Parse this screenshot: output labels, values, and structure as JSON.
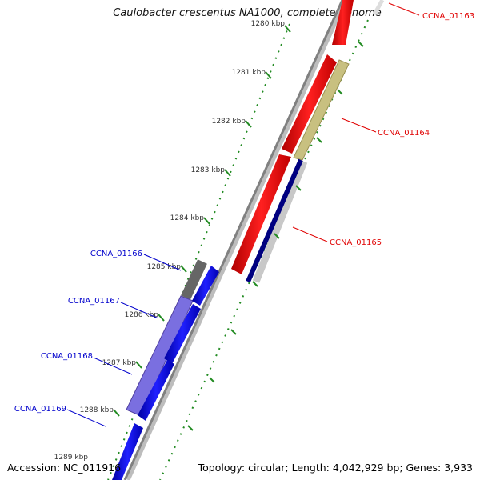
{
  "title": "Caulobacter crescentus NA1000, complete genome",
  "accession": "Accession: NC_011916",
  "summary": "Topology: circular; Length: 4,042,929 bp; Genes: 3,933",
  "ticks": [
    {
      "label": "1280 kbp"
    },
    {
      "label": "1281 kbp"
    },
    {
      "label": "1282 kbp"
    },
    {
      "label": "1283 kbp"
    },
    {
      "label": "1284 kbp"
    },
    {
      "label": "1285 kbp"
    },
    {
      "label": "1286 kbp"
    },
    {
      "label": "1287 kbp"
    },
    {
      "label": "1288 kbp"
    },
    {
      "label": "1289 kbp"
    }
  ],
  "genes": {
    "ccna_01163": {
      "label": "CCNA_01163",
      "color": "#ff0000"
    },
    "ccna_01164": {
      "label": "CCNA_01164",
      "color": "#ff0000"
    },
    "ccna_01165": {
      "label": "CCNA_01165",
      "color": "#ff0000"
    },
    "ccna_01166": {
      "label": "CCNA_01166",
      "color": "#0000cc"
    },
    "ccna_01167": {
      "label": "CCNA_01167",
      "color": "#0000cc"
    },
    "ccna_01168": {
      "label": "CCNA_01168",
      "color": "#0000cc"
    },
    "ccna_01169": {
      "label": "CCNA_01169",
      "color": "#0000cc"
    }
  },
  "colors": {
    "forward_cds": "#ff0000",
    "reverse_cds": "#0000ff",
    "backbone": "#808080",
    "tick": "#228b22",
    "forward_feature": "#c8c080",
    "reverse_feature": "#7a6fe0",
    "dark_feature": "#000080",
    "grey_feature": "#666666"
  }
}
